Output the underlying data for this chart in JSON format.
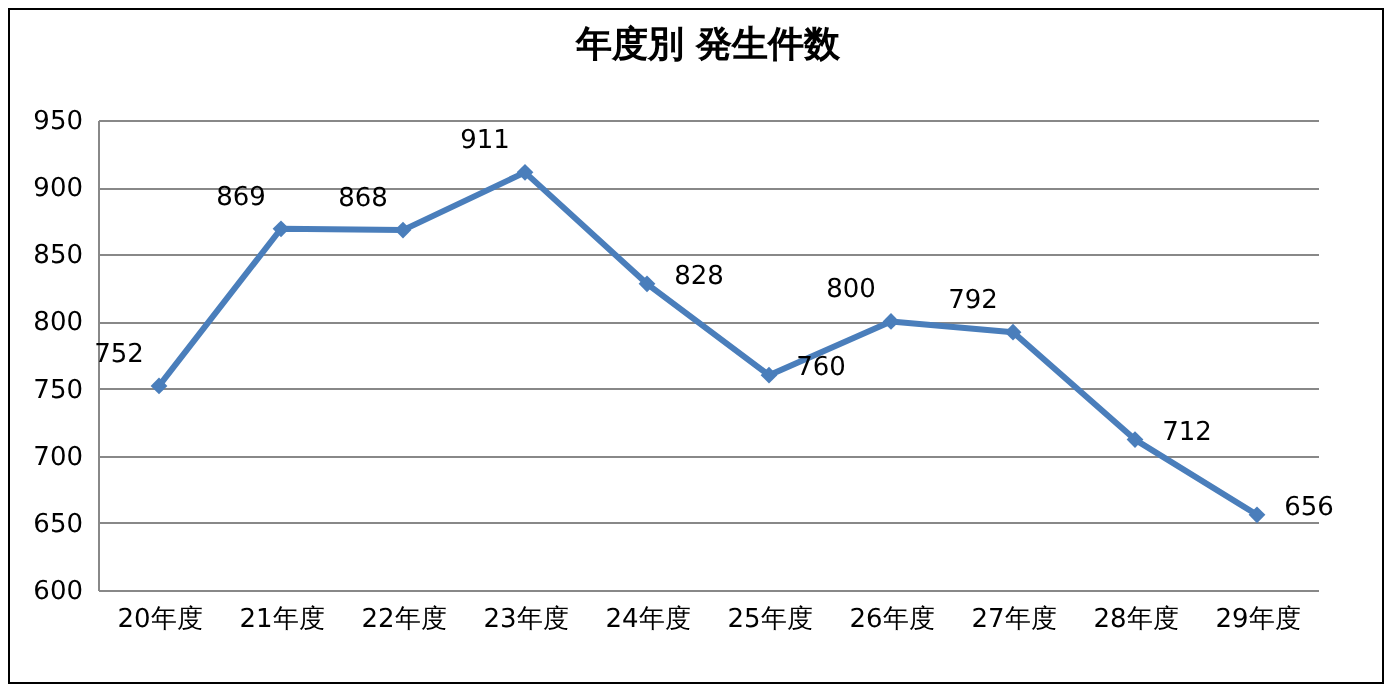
{
  "chart_data": {
    "type": "line",
    "title": "年度別  発生件数",
    "categories": [
      "20年度",
      "21年度",
      "22年度",
      "23年度",
      "24年度",
      "25年度",
      "26年度",
      "27年度",
      "28年度",
      "29年度"
    ],
    "series": [
      {
        "color": "#4a7ebb",
        "values": [
          752,
          869,
          868,
          911,
          828,
          760,
          800,
          792,
          712,
          656
        ]
      }
    ],
    "ylim": [
      600,
      950
    ],
    "yticks": [
      600,
      650,
      700,
      750,
      800,
      850,
      900,
      950
    ],
    "grid": "y",
    "marker": "diamond",
    "line_style": "solid",
    "data_labels": true,
    "legend": false
  }
}
